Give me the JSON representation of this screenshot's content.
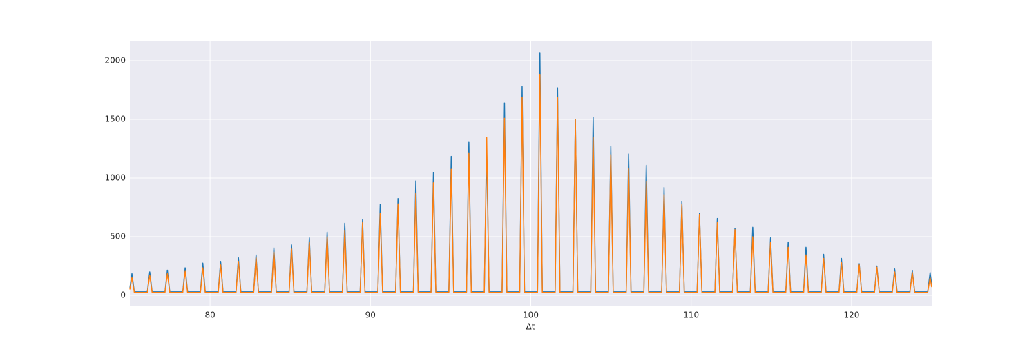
{
  "chart_data": {
    "type": "line",
    "xlabel": "Δt",
    "x": [
      75.0,
      75.13,
      75.28,
      76.09,
      76.24,
      76.39,
      77.19,
      77.34,
      77.49,
      78.3,
      78.45,
      78.6,
      79.4,
      79.55,
      79.7,
      80.51,
      80.66,
      80.81,
      81.62,
      81.77,
      81.92,
      82.72,
      82.87,
      83.02,
      83.83,
      83.98,
      84.13,
      84.93,
      85.08,
      85.23,
      86.04,
      86.19,
      86.34,
      87.15,
      87.3,
      87.45,
      88.25,
      88.4,
      88.55,
      89.36,
      89.51,
      89.66,
      90.46,
      90.61,
      90.76,
      91.57,
      91.72,
      91.87,
      92.68,
      92.83,
      92.98,
      93.78,
      93.93,
      94.08,
      94.89,
      95.04,
      95.19,
      95.99,
      96.14,
      96.29,
      97.1,
      97.25,
      97.4,
      98.21,
      98.36,
      98.51,
      99.31,
      99.46,
      99.61,
      100.42,
      100.57,
      100.72,
      101.52,
      101.67,
      101.82,
      102.63,
      102.78,
      102.93,
      103.74,
      103.89,
      104.04,
      104.84,
      104.99,
      105.14,
      105.95,
      106.1,
      106.25,
      107.05,
      107.2,
      107.35,
      108.16,
      108.31,
      108.46,
      109.27,
      109.42,
      109.57,
      110.37,
      110.52,
      110.67,
      111.48,
      111.63,
      111.78,
      112.58,
      112.73,
      112.88,
      113.69,
      113.84,
      113.99,
      114.8,
      114.95,
      115.1,
      115.9,
      116.05,
      116.2,
      117.01,
      117.16,
      117.31,
      118.11,
      118.26,
      118.41,
      119.22,
      119.37,
      119.52,
      120.33,
      120.48,
      120.63,
      121.43,
      121.58,
      121.73,
      122.54,
      122.69,
      122.84,
      123.64,
      123.79,
      123.94,
      124.75,
      124.9,
      125.0
    ],
    "series": [
      {
        "color": "#1f77b4",
        "values": [
          60,
          185,
          30,
          30,
          200,
          30,
          30,
          215,
          30,
          30,
          235,
          30,
          30,
          275,
          30,
          30,
          290,
          30,
          30,
          320,
          30,
          30,
          345,
          30,
          30,
          405,
          30,
          30,
          430,
          30,
          30,
          490,
          30,
          30,
          540,
          30,
          30,
          615,
          30,
          30,
          645,
          30,
          30,
          775,
          30,
          30,
          825,
          30,
          30,
          975,
          30,
          30,
          1045,
          30,
          30,
          1185,
          30,
          30,
          1305,
          30,
          30,
          1250,
          30,
          30,
          1640,
          30,
          30,
          1780,
          30,
          30,
          2065,
          30,
          30,
          1770,
          30,
          30,
          1500,
          30,
          30,
          1520,
          30,
          30,
          1270,
          30,
          30,
          1205,
          30,
          30,
          1110,
          30,
          30,
          920,
          30,
          30,
          800,
          30,
          30,
          700,
          30,
          30,
          655,
          30,
          30,
          570,
          30,
          30,
          580,
          30,
          30,
          490,
          30,
          30,
          455,
          30,
          30,
          410,
          30,
          30,
          350,
          30,
          30,
          315,
          30,
          30,
          270,
          30,
          30,
          250,
          30,
          30,
          225,
          30,
          30,
          210,
          30,
          30,
          195,
          90
        ]
      },
      {
        "color": "#ff7f0e",
        "values": [
          50,
          150,
          25,
          25,
          170,
          25,
          25,
          185,
          25,
          25,
          205,
          25,
          25,
          235,
          25,
          25,
          260,
          25,
          25,
          290,
          25,
          25,
          320,
          25,
          25,
          370,
          25,
          25,
          395,
          25,
          25,
          455,
          25,
          25,
          500,
          25,
          25,
          550,
          25,
          25,
          620,
          25,
          25,
          700,
          25,
          25,
          780,
          25,
          25,
          870,
          25,
          25,
          960,
          25,
          25,
          1075,
          25,
          25,
          1210,
          25,
          25,
          1345,
          25,
          25,
          1510,
          25,
          25,
          1690,
          25,
          25,
          1885,
          25,
          25,
          1690,
          25,
          25,
          1500,
          25,
          25,
          1350,
          25,
          25,
          1200,
          25,
          25,
          1080,
          25,
          25,
          970,
          25,
          25,
          860,
          25,
          25,
          775,
          25,
          25,
          690,
          25,
          25,
          620,
          25,
          25,
          560,
          25,
          25,
          500,
          25,
          25,
          450,
          25,
          25,
          410,
          25,
          25,
          345,
          25,
          25,
          315,
          25,
          25,
          280,
          25,
          25,
          260,
          25,
          25,
          240,
          25,
          25,
          200,
          25,
          25,
          195,
          25,
          25,
          150,
          70
        ]
      }
    ],
    "xlim": [
      75,
      125
    ],
    "ylim": [
      -94,
      2165
    ],
    "xticks": [
      80,
      90,
      100,
      110,
      120
    ],
    "yticks": [
      0,
      500,
      1000,
      1500,
      2000
    ],
    "grid": true,
    "background": "#eaeaf2"
  }
}
